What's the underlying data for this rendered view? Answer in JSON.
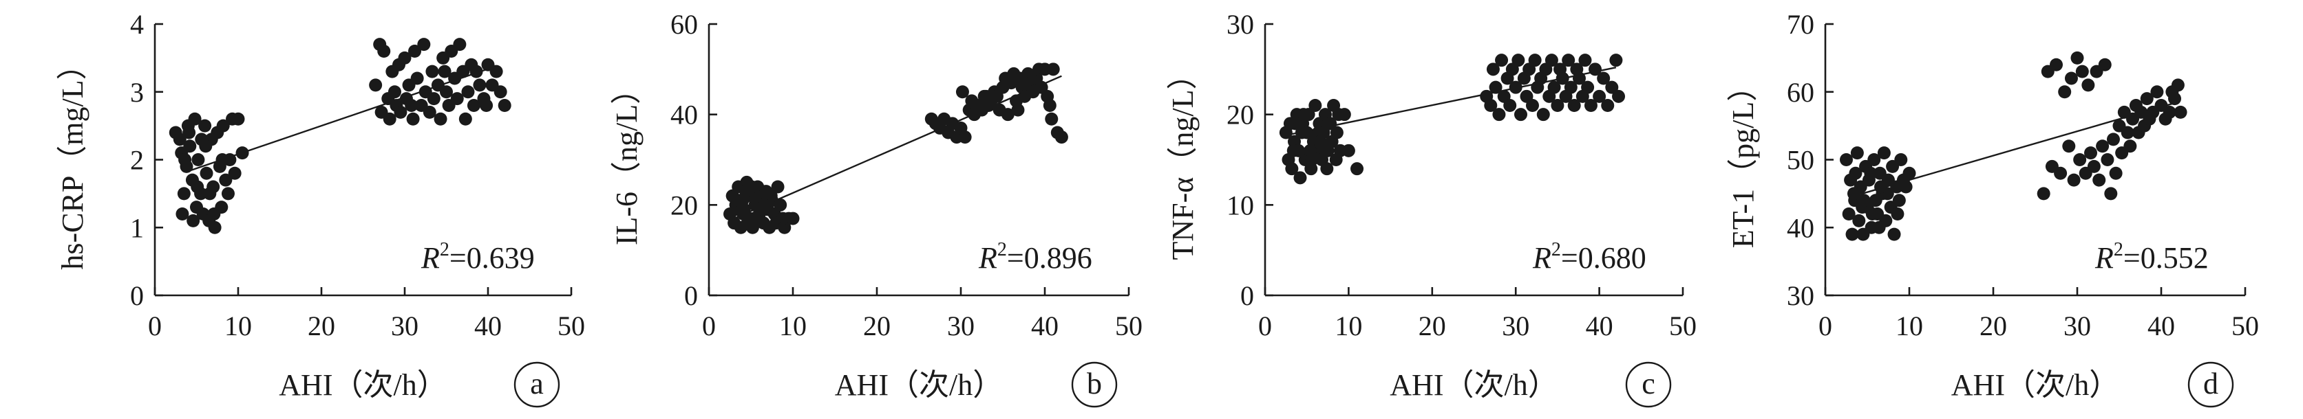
{
  "chart_data": [
    {
      "id": "a",
      "type": "scatter",
      "badge": "a",
      "xlabel": "AHI（次/h）",
      "ylabel": "hs-CRP（mg/L）",
      "xlim": [
        0,
        50
      ],
      "ylim": [
        0,
        4
      ],
      "xticks": [
        0,
        10,
        20,
        30,
        40,
        50
      ],
      "yticks": [
        0,
        1,
        2,
        3,
        4
      ],
      "r2_symbol": "R",
      "r2_exp": "2",
      "r2_value": "=0.639",
      "trendline": [
        [
          4,
          1.83
        ],
        [
          41,
          3.38
        ]
      ],
      "points": [
        [
          2.5,
          2.4
        ],
        [
          3,
          2.3
        ],
        [
          3.2,
          2.1
        ],
        [
          3.5,
          1.5
        ],
        [
          3.8,
          1.9
        ],
        [
          4,
          2.5
        ],
        [
          4.2,
          2.2
        ],
        [
          4.5,
          1.7
        ],
        [
          4.8,
          2.6
        ],
        [
          5,
          1.3
        ],
        [
          5.2,
          2.0
        ],
        [
          5.5,
          1.5
        ],
        [
          5.8,
          1.2
        ],
        [
          6,
          2.5
        ],
        [
          6.2,
          1.8
        ],
        [
          6.5,
          1.1
        ],
        [
          6.8,
          2.3
        ],
        [
          7,
          1.6
        ],
        [
          7.2,
          1.0
        ],
        [
          7.5,
          2.4
        ],
        [
          7.8,
          1.9
        ],
        [
          8,
          1.3
        ],
        [
          8.2,
          2.5
        ],
        [
          8.5,
          1.7
        ],
        [
          8.8,
          1.5
        ],
        [
          9,
          2.0
        ],
        [
          9.3,
          2.6
        ],
        [
          9.6,
          1.8
        ],
        [
          10,
          2.6
        ],
        [
          10.5,
          2.1
        ],
        [
          3.3,
          1.2
        ],
        [
          4.1,
          2.4
        ],
        [
          5.1,
          1.6
        ],
        [
          6.1,
          2.2
        ],
        [
          7.1,
          1.2
        ],
        [
          8.1,
          2.0
        ],
        [
          4.6,
          1.1
        ],
        [
          5.6,
          2.3
        ],
        [
          6.6,
          1.5
        ],
        [
          3.6,
          2.0
        ],
        [
          27,
          3.7
        ],
        [
          27.2,
          2.7
        ],
        [
          27.5,
          3.6
        ],
        [
          28,
          2.9
        ],
        [
          28.2,
          2.6
        ],
        [
          28.5,
          3.3
        ],
        [
          29,
          2.8
        ],
        [
          29.3,
          3.4
        ],
        [
          29.5,
          2.7
        ],
        [
          30,
          3.5
        ],
        [
          30.2,
          2.9
        ],
        [
          30.5,
          3.1
        ],
        [
          31,
          2.6
        ],
        [
          31.2,
          3.6
        ],
        [
          31.5,
          3.2
        ],
        [
          32,
          2.8
        ],
        [
          32.3,
          3.7
        ],
        [
          32.5,
          3.0
        ],
        [
          33,
          2.7
        ],
        [
          33.3,
          3.3
        ],
        [
          33.5,
          2.9
        ],
        [
          34,
          3.1
        ],
        [
          34.3,
          2.6
        ],
        [
          34.6,
          3.5
        ],
        [
          35,
          3.0
        ],
        [
          35.3,
          2.8
        ],
        [
          35.6,
          3.6
        ],
        [
          36,
          3.2
        ],
        [
          36.3,
          2.9
        ],
        [
          36.6,
          3.7
        ],
        [
          37,
          3.3
        ],
        [
          37.3,
          2.6
        ],
        [
          37.6,
          3.0
        ],
        [
          38,
          3.4
        ],
        [
          38.3,
          2.8
        ],
        [
          38.6,
          3.3
        ],
        [
          39,
          3.1
        ],
        [
          39.5,
          2.9
        ],
        [
          40,
          3.4
        ],
        [
          40.5,
          3.1
        ],
        [
          41,
          3.3
        ],
        [
          41.5,
          3.0
        ],
        [
          42,
          2.8
        ],
        [
          26.5,
          3.1
        ],
        [
          28.8,
          3.0
        ],
        [
          30.8,
          2.8
        ],
        [
          34.8,
          3.3
        ],
        [
          39.8,
          2.8
        ]
      ]
    },
    {
      "id": "b",
      "type": "scatter",
      "badge": "b",
      "xlabel": "AHI（次/h）",
      "ylabel": "IL-6（ng/L）",
      "xlim": [
        0,
        50
      ],
      "ylim": [
        0,
        60
      ],
      "xticks": [
        0,
        10,
        20,
        30,
        40,
        50
      ],
      "yticks": [
        0,
        20,
        40,
        60
      ],
      "r2_symbol": "R",
      "r2_exp": "2",
      "r2_value": "=0.896",
      "trendline": [
        [
          3,
          17
        ],
        [
          42,
          48.5
        ]
      ],
      "points": [
        [
          2.5,
          18
        ],
        [
          2.8,
          22
        ],
        [
          3,
          16
        ],
        [
          3.2,
          20
        ],
        [
          3.5,
          24
        ],
        [
          3.8,
          15
        ],
        [
          4,
          21
        ],
        [
          4.2,
          19
        ],
        [
          4.5,
          25
        ],
        [
          4.8,
          17
        ],
        [
          5,
          22
        ],
        [
          5.2,
          15
        ],
        [
          5.5,
          20
        ],
        [
          5.8,
          24
        ],
        [
          6,
          18
        ],
        [
          6.2,
          21
        ],
        [
          6.5,
          16
        ],
        [
          6.8,
          23
        ],
        [
          7,
          19
        ],
        [
          7.2,
          15
        ],
        [
          7.5,
          21
        ],
        [
          7.8,
          18
        ],
        [
          8,
          16
        ],
        [
          8.2,
          24
        ],
        [
          8.5,
          20
        ],
        [
          8.8,
          17
        ],
        [
          9,
          15
        ],
        [
          9.5,
          17
        ],
        [
          10,
          17
        ],
        [
          3.4,
          19
        ],
        [
          4.4,
          23
        ],
        [
          5.4,
          17
        ],
        [
          6.4,
          19
        ],
        [
          7.4,
          22
        ],
        [
          4.6,
          16
        ],
        [
          5.6,
          22
        ],
        [
          6.6,
          20
        ],
        [
          3.6,
          21
        ],
        [
          4.1,
          18
        ],
        [
          5.1,
          24
        ],
        [
          26.5,
          39
        ],
        [
          27,
          38
        ],
        [
          27.5,
          37
        ],
        [
          28,
          39
        ],
        [
          28.5,
          36
        ],
        [
          29,
          38
        ],
        [
          29.5,
          35
        ],
        [
          30,
          37
        ],
        [
          30.5,
          35
        ],
        [
          31,
          41
        ],
        [
          31.3,
          43
        ],
        [
          31.6,
          40
        ],
        [
          32,
          42
        ],
        [
          32.5,
          41
        ],
        [
          33,
          44
        ],
        [
          33.3,
          42
        ],
        [
          33.6,
          43
        ],
        [
          34,
          45
        ],
        [
          34.3,
          44
        ],
        [
          34.6,
          41
        ],
        [
          35,
          46
        ],
        [
          35.3,
          48
        ],
        [
          35.6,
          40
        ],
        [
          36,
          47
        ],
        [
          36.3,
          49
        ],
        [
          36.6,
          43
        ],
        [
          37,
          48
        ],
        [
          37.3,
          46
        ],
        [
          37.6,
          44
        ],
        [
          38,
          49
        ],
        [
          38.3,
          47
        ],
        [
          38.6,
          45
        ],
        [
          39,
          48
        ],
        [
          39.3,
          50
        ],
        [
          39.6,
          46
        ],
        [
          40,
          50
        ],
        [
          40.3,
          44
        ],
        [
          40.6,
          42
        ],
        [
          41,
          50
        ],
        [
          41.5,
          36
        ],
        [
          42,
          35
        ],
        [
          30.2,
          45
        ],
        [
          36.8,
          41
        ],
        [
          32.8,
          44
        ],
        [
          40.8,
          39
        ]
      ]
    },
    {
      "id": "c",
      "type": "scatter",
      "badge": "c",
      "xlabel": "AHI（次/h）",
      "ylabel": "TNF-α（ng/L）",
      "xlim": [
        0,
        50
      ],
      "ylim": [
        0,
        30
      ],
      "xticks": [
        0,
        10,
        20,
        30,
        40,
        50
      ],
      "yticks": [
        0,
        10,
        20,
        30
      ],
      "r2_symbol": "R",
      "r2_exp": "2",
      "r2_value": "=0.680",
      "trendline": [
        [
          3,
          17.8
        ],
        [
          42,
          25.2
        ]
      ],
      "points": [
        [
          2.5,
          18
        ],
        [
          2.8,
          15
        ],
        [
          3,
          19
        ],
        [
          3.2,
          14
        ],
        [
          3.5,
          17
        ],
        [
          3.8,
          20
        ],
        [
          4,
          16
        ],
        [
          4.2,
          13
        ],
        [
          4.5,
          19
        ],
        [
          4.8,
          15
        ],
        [
          5,
          18
        ],
        [
          5.2,
          20
        ],
        [
          5.5,
          14
        ],
        [
          5.8,
          17
        ],
        [
          6,
          21
        ],
        [
          6.2,
          16
        ],
        [
          6.5,
          19
        ],
        [
          6.8,
          15
        ],
        [
          7,
          18
        ],
        [
          7.2,
          20
        ],
        [
          7.5,
          16
        ],
        [
          7.8,
          19
        ],
        [
          8,
          17
        ],
        [
          8.2,
          21
        ],
        [
          8.5,
          15
        ],
        [
          8.8,
          20
        ],
        [
          9,
          16
        ],
        [
          9.5,
          20
        ],
        [
          10,
          16
        ],
        [
          11,
          14
        ],
        [
          3.4,
          16
        ],
        [
          4.4,
          18
        ],
        [
          5.4,
          16
        ],
        [
          6.4,
          18
        ],
        [
          7.4,
          14
        ],
        [
          4.6,
          20
        ],
        [
          5.6,
          15
        ],
        [
          6.6,
          17
        ],
        [
          3.6,
          19
        ],
        [
          8.6,
          18
        ],
        [
          26.5,
          22
        ],
        [
          27,
          21
        ],
        [
          27.3,
          25
        ],
        [
          27.6,
          23
        ],
        [
          28,
          20
        ],
        [
          28.3,
          26
        ],
        [
          28.6,
          22
        ],
        [
          29,
          24
        ],
        [
          29.3,
          21
        ],
        [
          29.6,
          25
        ],
        [
          30,
          23
        ],
        [
          30.3,
          26
        ],
        [
          30.6,
          20
        ],
        [
          31,
          24
        ],
        [
          31.3,
          22
        ],
        [
          31.6,
          25
        ],
        [
          32,
          21
        ],
        [
          32.3,
          26
        ],
        [
          32.6,
          23
        ],
        [
          33,
          24
        ],
        [
          33.3,
          20
        ],
        [
          33.6,
          25
        ],
        [
          34,
          22
        ],
        [
          34.3,
          26
        ],
        [
          34.6,
          23
        ],
        [
          35,
          21
        ],
        [
          35.3,
          25
        ],
        [
          35.6,
          24
        ],
        [
          36,
          22
        ],
        [
          36.3,
          26
        ],
        [
          36.6,
          23
        ],
        [
          37,
          21
        ],
        [
          37.3,
          25
        ],
        [
          37.6,
          24
        ],
        [
          38,
          22
        ],
        [
          38.3,
          26
        ],
        [
          38.6,
          23
        ],
        [
          39,
          21
        ],
        [
          39.5,
          25
        ],
        [
          40,
          22
        ],
        [
          40.5,
          24
        ],
        [
          41,
          21
        ],
        [
          41.5,
          23
        ],
        [
          42,
          26
        ],
        [
          42.3,
          22
        ]
      ]
    },
    {
      "id": "d",
      "type": "scatter",
      "badge": "d",
      "xlabel": "AHI（次/h）",
      "ylabel": "ET-1（pg/L）",
      "xlim": [
        0,
        50
      ],
      "ylim": [
        30,
        70
      ],
      "xticks": [
        0,
        10,
        20,
        30,
        40,
        50
      ],
      "yticks": [
        30,
        40,
        50,
        60,
        70
      ],
      "r2_symbol": "R",
      "r2_exp": "2",
      "r2_value": "=0.552",
      "trendline": [
        [
          3,
          44.5
        ],
        [
          42,
          58.5
        ]
      ],
      "points": [
        [
          2.5,
          50
        ],
        [
          2.8,
          42
        ],
        [
          3,
          47
        ],
        [
          3.2,
          39
        ],
        [
          3.5,
          44
        ],
        [
          3.8,
          51
        ],
        [
          4,
          41
        ],
        [
          4.2,
          46
        ],
        [
          4.5,
          39
        ],
        [
          4.8,
          49
        ],
        [
          5,
          43
        ],
        [
          5.2,
          47
        ],
        [
          5.5,
          40
        ],
        [
          5.8,
          50
        ],
        [
          6,
          44
        ],
        [
          6.2,
          42
        ],
        [
          6.5,
          48
        ],
        [
          6.8,
          45
        ],
        [
          7,
          51
        ],
        [
          7.2,
          41
        ],
        [
          7.5,
          47
        ],
        [
          7.8,
          43
        ],
        [
          8,
          49
        ],
        [
          8.2,
          39
        ],
        [
          8.5,
          46
        ],
        [
          8.8,
          44
        ],
        [
          9,
          50
        ],
        [
          9.3,
          47
        ],
        [
          9.6,
          46
        ],
        [
          10,
          48
        ],
        [
          3.4,
          45
        ],
        [
          4.4,
          43
        ],
        [
          5.4,
          48
        ],
        [
          6.4,
          40
        ],
        [
          7.4,
          45
        ],
        [
          4.6,
          44
        ],
        [
          5.6,
          42
        ],
        [
          6.6,
          46
        ],
        [
          3.6,
          48
        ],
        [
          8.6,
          42
        ],
        [
          26,
          45
        ],
        [
          26.5,
          63
        ],
        [
          27,
          49
        ],
        [
          27.5,
          64
        ],
        [
          28,
          48
        ],
        [
          28.5,
          60
        ],
        [
          29,
          52
        ],
        [
          29.3,
          62
        ],
        [
          29.6,
          47
        ],
        [
          30,
          65
        ],
        [
          30.3,
          50
        ],
        [
          30.6,
          63
        ],
        [
          31,
          48
        ],
        [
          31.3,
          61
        ],
        [
          31.6,
          51
        ],
        [
          32,
          49
        ],
        [
          32.3,
          63
        ],
        [
          32.6,
          47
        ],
        [
          33,
          52
        ],
        [
          33.3,
          64
        ],
        [
          33.6,
          50
        ],
        [
          34,
          45
        ],
        [
          34.3,
          53
        ],
        [
          34.6,
          48
        ],
        [
          35,
          55
        ],
        [
          35.3,
          51
        ],
        [
          35.6,
          57
        ],
        [
          36,
          54
        ],
        [
          36.3,
          52
        ],
        [
          36.6,
          56
        ],
        [
          37,
          58
        ],
        [
          37.3,
          54
        ],
        [
          37.6,
          57
        ],
        [
          38,
          55
        ],
        [
          38.3,
          59
        ],
        [
          38.6,
          56
        ],
        [
          39,
          57
        ],
        [
          39.5,
          60
        ],
        [
          40,
          58
        ],
        [
          40.5,
          56
        ],
        [
          41,
          57
        ],
        [
          41.3,
          60
        ],
        [
          41.6,
          59
        ],
        [
          42,
          61
        ],
        [
          42.3,
          57
        ]
      ]
    }
  ]
}
